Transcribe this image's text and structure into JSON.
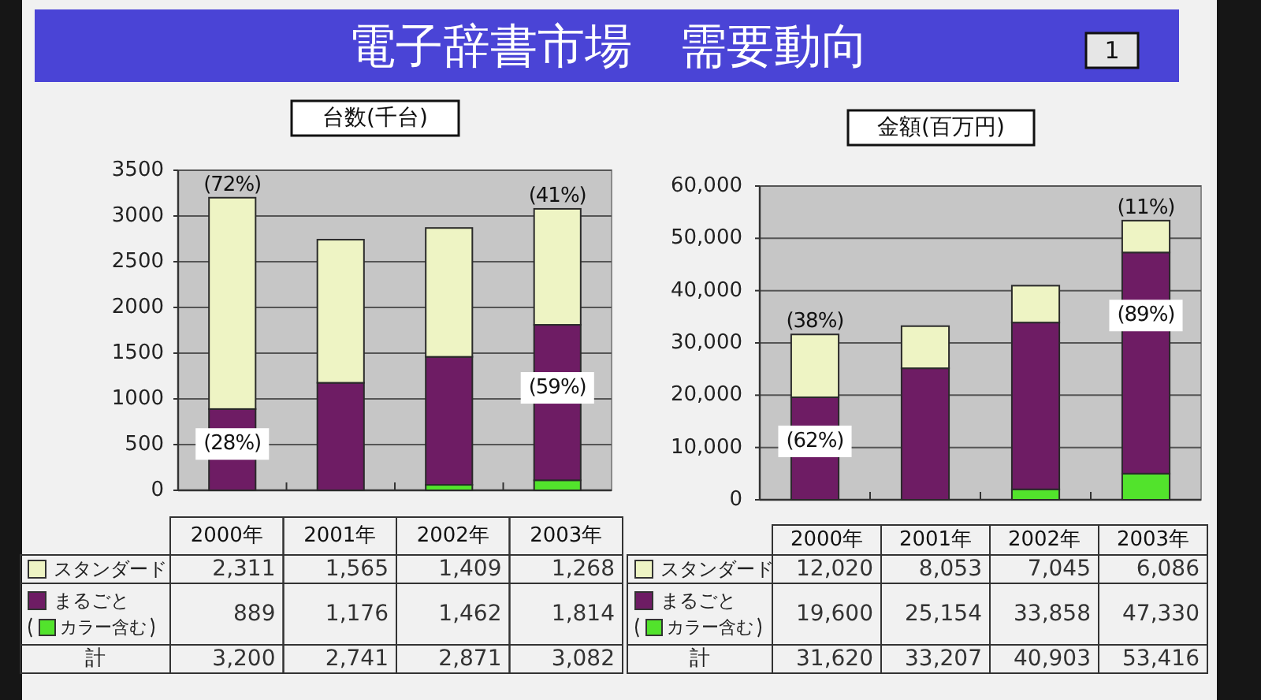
{
  "chart_data": [
    {
      "type": "other",
      "title": "電子辞書市場　需要動向",
      "annotations": [
        "1"
      ]
    },
    {
      "type": "bar",
      "title": "台数(千台)",
      "categories": [
        "2000年",
        "2001年",
        "2002年",
        "2003年"
      ],
      "stacked": true,
      "series": [
        {
          "name": "カラー含む",
          "color": "#52e32c",
          "values": [
            null,
            null,
            60,
            110
          ]
        },
        {
          "name": "まるごと",
          "color": "#6e1c64",
          "values": [
            889,
            1176,
            1400,
            1700
          ]
        },
        {
          "name": "スタンダード",
          "color": "#eef4c4",
          "values": [
            2311,
            1565,
            1409,
            1268
          ],
          "value_labels": [
            "2,311",
            "1,565",
            "1,409",
            "1,268"
          ]
        }
      ],
      "ylim": [
        0,
        3500
      ],
      "yticks": [
        0,
        500,
        1000,
        1500,
        2000,
        2500,
        3000,
        3500
      ],
      "grid": "y",
      "legend": "bottom left",
      "annotations": [
        {
          "text": "(72%)",
          "x": "2000年",
          "y": 3200
        },
        {
          "text": "(28%)",
          "x": "2000年",
          "y": 889
        },
        {
          "text": "(41%)",
          "x": "2003年",
          "y": 3078
        },
        {
          "text": "(59%)",
          "x": "2003年",
          "y": 1810
        },
        "889",
        "1,176",
        "1,462",
        "1,814",
        "計",
        "3,200",
        "2,741",
        "2,871",
        "3,082"
      ]
    },
    {
      "type": "bar",
      "title": "金額(百万円)",
      "categories": [
        "2000年",
        "2001年",
        "2002年",
        "2003年"
      ],
      "stacked": true,
      "series": [
        {
          "name": "カラー含む",
          "color": "#52e32c",
          "values": [
            null,
            null,
            2000,
            5000
          ]
        },
        {
          "name": "まるごと",
          "color": "#6e1c64",
          "values": [
            19600,
            25154,
            31900,
            42300
          ]
        },
        {
          "name": "スタンダード",
          "color": "#eef4c4",
          "values": [
            12020,
            8053,
            7045,
            6086
          ],
          "value_labels": [
            "12,020",
            "8,053",
            "7,045",
            "6,086"
          ]
        }
      ],
      "ylim": [
        0,
        60000
      ],
      "yticks": [
        0,
        {
          "value": 10000,
          "label": "10,000"
        },
        {
          "value": 20000,
          "label": "20,000"
        },
        {
          "value": 30000,
          "label": "30,000"
        },
        {
          "value": 40000,
          "label": "40,000"
        },
        {
          "value": 50000,
          "label": "50,000"
        },
        {
          "value": 60000,
          "label": "60,000"
        }
      ],
      "grid": "y",
      "legend": "bottom left",
      "annotations": [
        {
          "text": "(38%)",
          "x": "2000年",
          "y": 31620
        },
        {
          "text": "(62%)",
          "x": "2000年",
          "y": 19600
        },
        {
          "text": "(11%)",
          "x": "2003年",
          "y": 53386
        },
        {
          "text": "(89%)",
          "x": "2003年",
          "y": 47300
        },
        "19,600",
        "25,154",
        "33,858",
        "47,330",
        "計",
        "31,620",
        "33,207",
        "40,903",
        "53,416"
      ]
    }
  ]
}
